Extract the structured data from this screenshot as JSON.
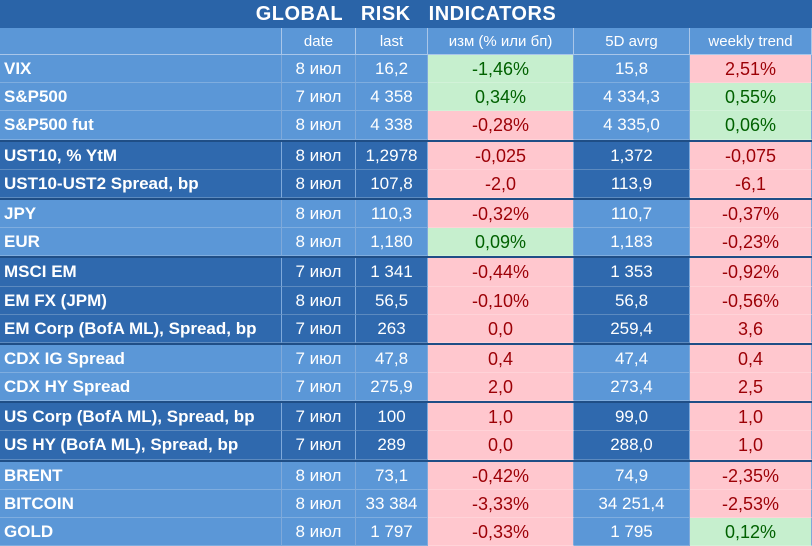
{
  "title": "GLOBAL  RISK  INDICATORS",
  "columns": [
    "",
    "date",
    "last",
    "изм (% или бп)",
    "5D avrg",
    "weekly trend"
  ],
  "rows": [
    {
      "name": "VIX",
      "date": "8 июл",
      "last": "16,2",
      "chg": "-1,46%",
      "chg_style": "pos",
      "avg": "15,8",
      "trend": "2,51%",
      "trend_style": "neg",
      "shade": "light"
    },
    {
      "name": "S&P500",
      "date": "7 июл",
      "last": "4 358",
      "chg": "0,34%",
      "chg_style": "pos",
      "avg": "4 334,3",
      "trend": "0,55%",
      "trend_style": "pos",
      "shade": "light"
    },
    {
      "name": "S&P500 fut",
      "date": "8 июл",
      "last": "4 338",
      "chg": "-0,28%",
      "chg_style": "neg",
      "avg": "4 335,0",
      "trend": "0,06%",
      "trend_style": "pos",
      "shade": "light"
    },
    {
      "name": "UST10, % YtM",
      "date": "8 июл",
      "last": "1,2978",
      "chg": "-0,025",
      "chg_style": "neg",
      "avg": "1,372",
      "trend": "-0,075",
      "trend_style": "neg",
      "shade": "dark"
    },
    {
      "name": "UST10-UST2 Spread, bp",
      "date": "8 июл",
      "last": "107,8",
      "chg": "-2,0",
      "chg_style": "neg",
      "avg": "113,9",
      "trend": "-6,1",
      "trend_style": "neg",
      "shade": "dark"
    },
    {
      "name": "JPY",
      "date": "8 июл",
      "last": "110,3",
      "chg": "-0,32%",
      "chg_style": "neg",
      "avg": "110,7",
      "trend": "-0,37%",
      "trend_style": "neg",
      "shade": "light"
    },
    {
      "name": "EUR",
      "date": "8 июл",
      "last": "1,180",
      "chg": "0,09%",
      "chg_style": "pos",
      "avg": "1,183",
      "trend": "-0,23%",
      "trend_style": "neg",
      "shade": "light"
    },
    {
      "name": "MSCI EM",
      "date": "7 июл",
      "last": "1 341",
      "chg": "-0,44%",
      "chg_style": "neg",
      "avg": "1 353",
      "trend": "-0,92%",
      "trend_style": "neg",
      "shade": "dark"
    },
    {
      "name": "EM FX (JPM)",
      "date": "8 июл",
      "last": "56,5",
      "chg": "-0,10%",
      "chg_style": "neg",
      "avg": "56,8",
      "trend": "-0,56%",
      "trend_style": "neg",
      "shade": "dark"
    },
    {
      "name": "EM Corp (BofA ML), Spread, bp",
      "date": "7 июл",
      "last": "263",
      "chg": "0,0",
      "chg_style": "neg",
      "avg": "259,4",
      "trend": "3,6",
      "trend_style": "neg",
      "shade": "dark"
    },
    {
      "name": "CDX IG Spread",
      "date": "7 июл",
      "last": "47,8",
      "chg": "0,4",
      "chg_style": "neg",
      "avg": "47,4",
      "trend": "0,4",
      "trend_style": "neg",
      "shade": "light"
    },
    {
      "name": "CDX HY Spread",
      "date": "7 июл",
      "last": "275,9",
      "chg": "2,0",
      "chg_style": "neg",
      "avg": "273,4",
      "trend": "2,5",
      "trend_style": "neg",
      "shade": "light"
    },
    {
      "name": "US Corp (BofA ML), Spread, bp",
      "date": "7 июл",
      "last": "100",
      "chg": "1,0",
      "chg_style": "neg",
      "avg": "99,0",
      "trend": "1,0",
      "trend_style": "neg",
      "shade": "dark"
    },
    {
      "name": "US HY (BofA ML), Spread, bp",
      "date": "7 июл",
      "last": "289",
      "chg": "0,0",
      "chg_style": "neg",
      "avg": "288,0",
      "trend": "1,0",
      "trend_style": "neg",
      "shade": "dark"
    },
    {
      "name": "BRENT",
      "date": "8 июл",
      "last": "73,1",
      "chg": "-0,42%",
      "chg_style": "neg",
      "avg": "74,9",
      "trend": "-2,35%",
      "trend_style": "neg",
      "shade": "light"
    },
    {
      "name": "BITCOIN",
      "date": "8 июл",
      "last": "33 384",
      "chg": "-3,33%",
      "chg_style": "neg",
      "avg": "34 251,4",
      "trend": "-2,53%",
      "trend_style": "neg",
      "shade": "light"
    },
    {
      "name": "GOLD",
      "date": "8 июл",
      "last": "1 797",
      "chg": "-0,33%",
      "chg_style": "neg",
      "avg": "1 795",
      "trend": "0,12%",
      "trend_style": "pos",
      "shade": "light"
    }
  ],
  "colors": {
    "header_bg": "#2A64A8",
    "light_row": "#5B97D7",
    "dark_row": "#2F69AE",
    "pos_fill": "#C6EFCE",
    "neg_fill": "#FFC7CE",
    "neg_text": "#9C0006",
    "pos_text": "#006100"
  }
}
